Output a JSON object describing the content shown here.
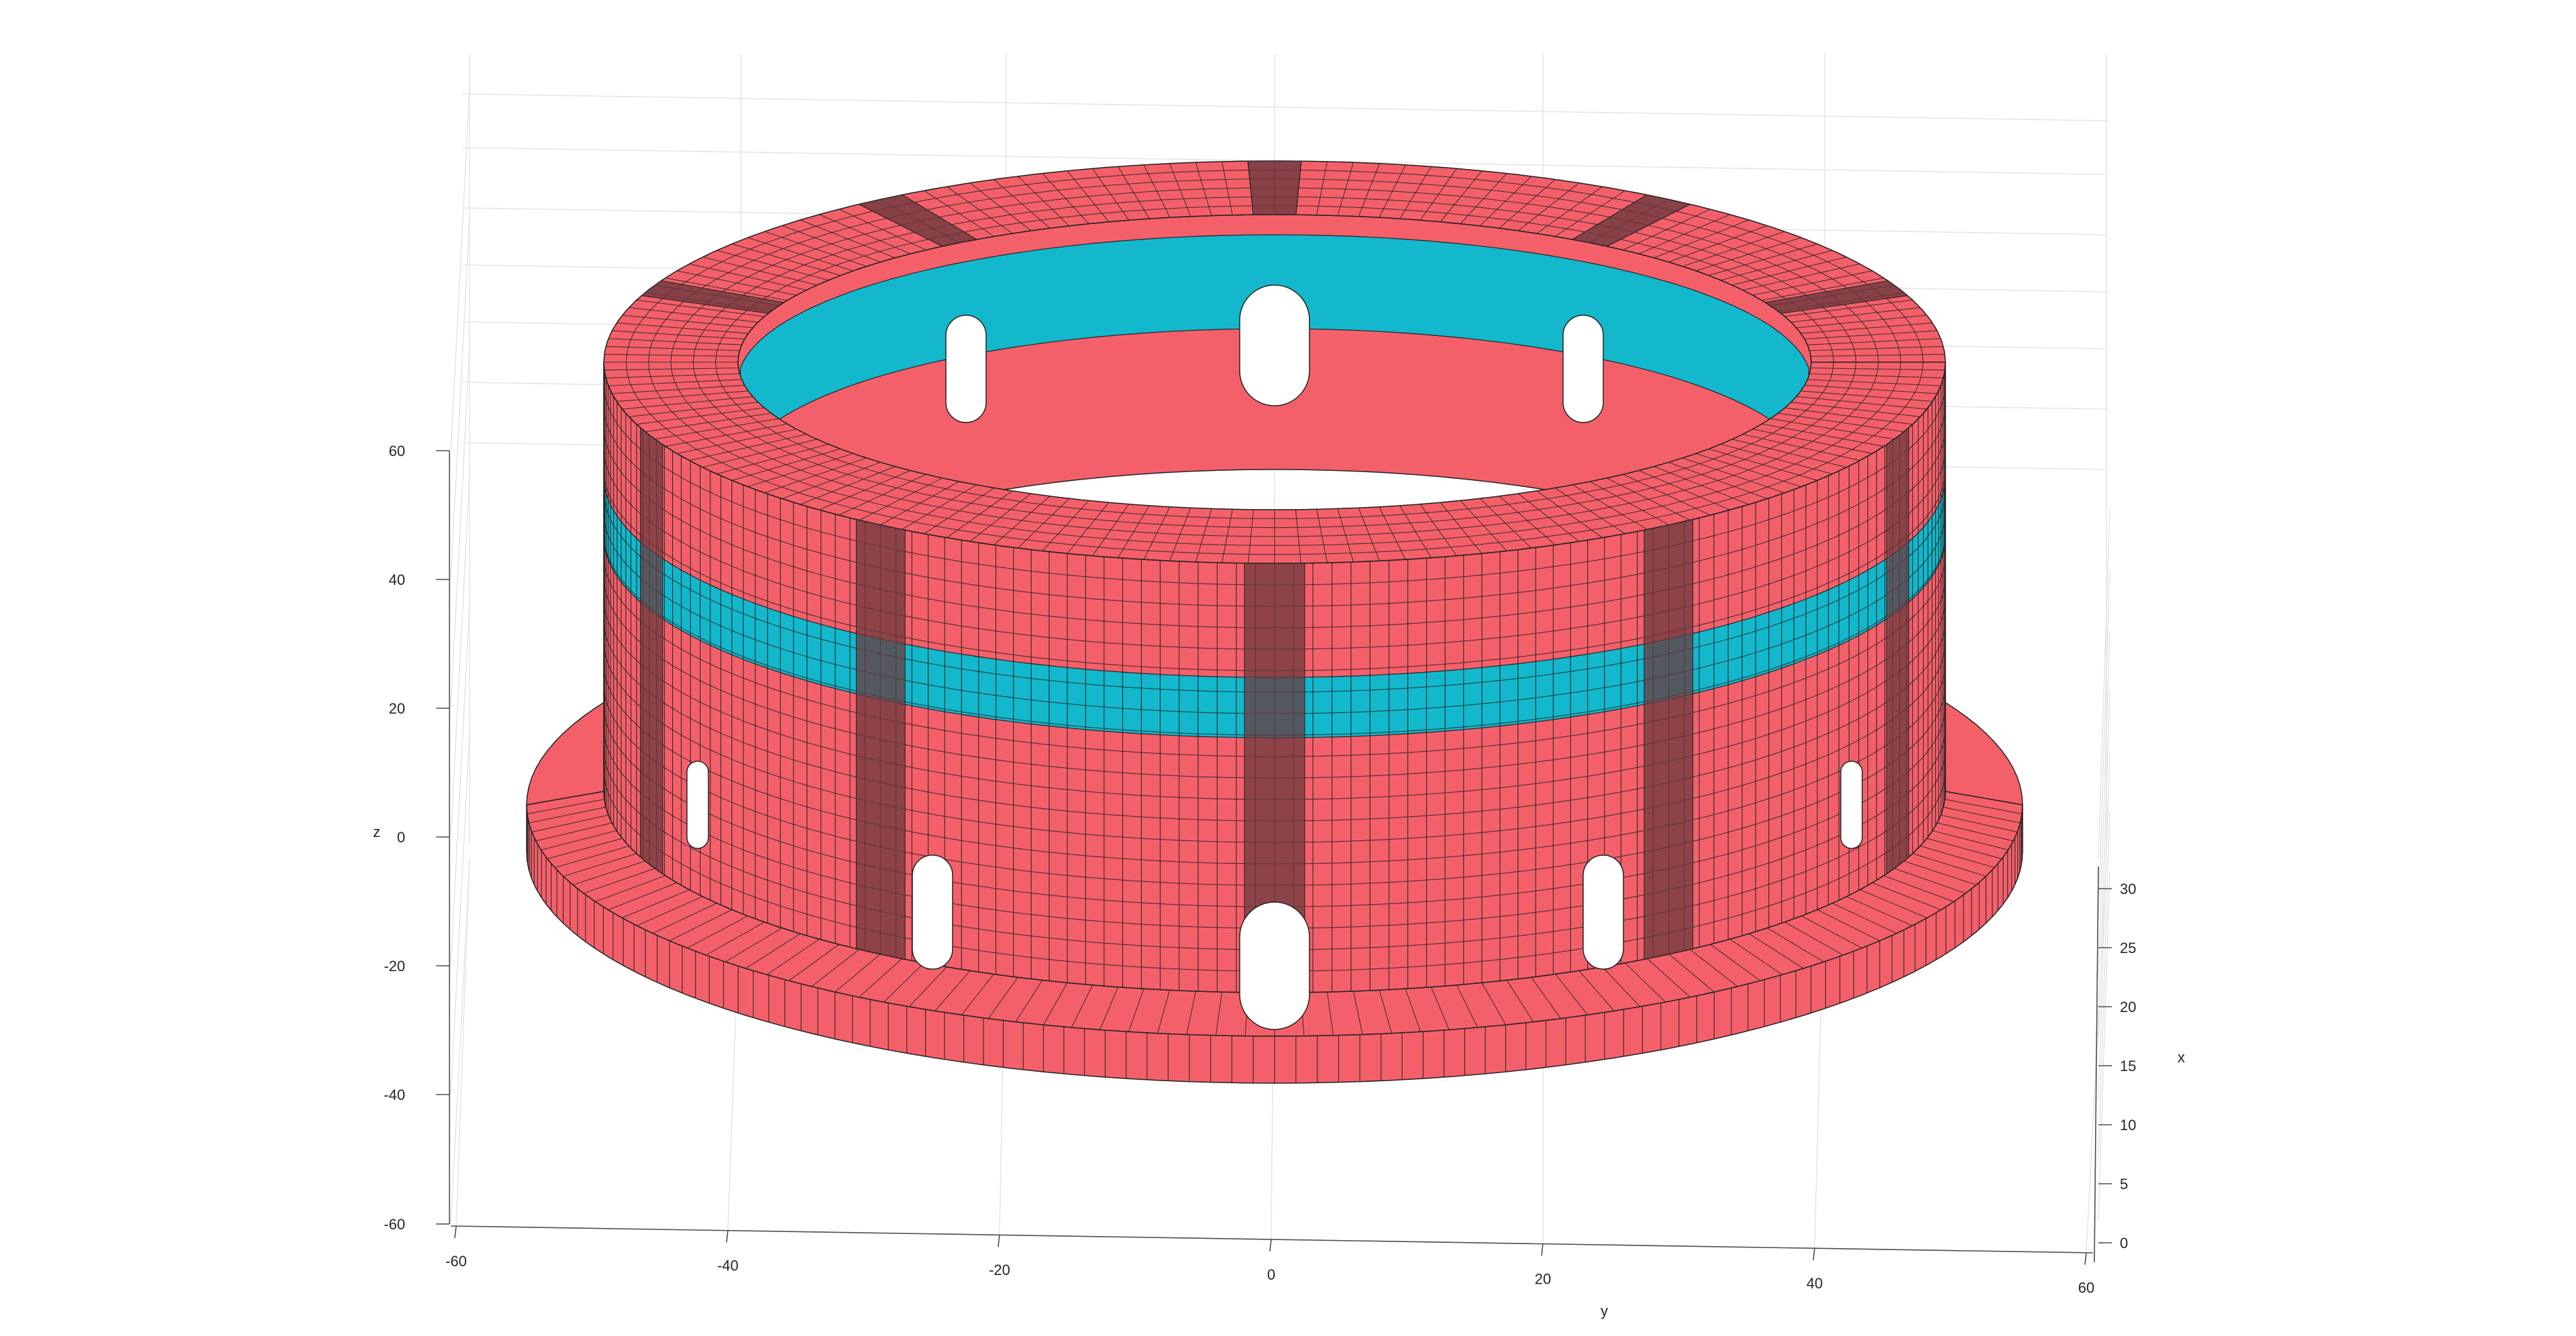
{
  "figure": {
    "type": "3d-mesh",
    "axes": {
      "z": {
        "label": "z",
        "range": [
          -60,
          60
        ],
        "ticks": [
          "60",
          "40",
          "20",
          "0",
          "-20",
          "-40",
          "-60"
        ]
      },
      "y": {
        "label": "y",
        "range": [
          -60,
          60
        ],
        "ticks": [
          "-60",
          "-40",
          "-20",
          "0",
          "20",
          "40",
          "60"
        ]
      },
      "x": {
        "label": "x",
        "range": [
          0,
          30
        ],
        "ticks": [
          "30",
          "25",
          "20",
          "15",
          "10",
          "5",
          "0"
        ]
      }
    },
    "grid": true,
    "colors": {
      "primary_mesh": "#f4606a",
      "dense_mesh": "#6b3a3e",
      "cyan_band": "#13b8cc",
      "edge": "#222222"
    }
  }
}
